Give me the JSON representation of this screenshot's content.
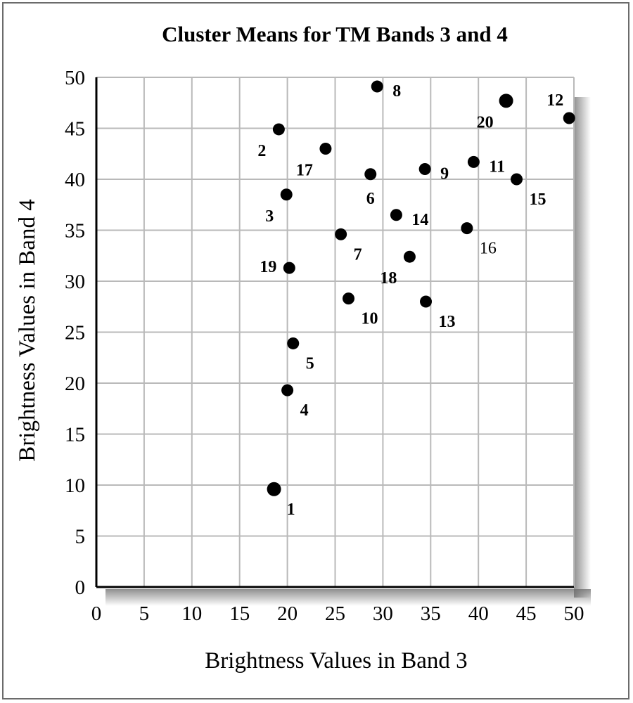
{
  "chart_data": {
    "type": "scatter",
    "title": "Cluster Means for TM Bands 3 and 4",
    "xlabel": "Brightness Values in Band 3",
    "ylabel": "Brightness Values in Band 4",
    "xlim": [
      0,
      50
    ],
    "ylim": [
      0,
      50
    ],
    "xticks": [
      0,
      5,
      10,
      15,
      20,
      25,
      30,
      35,
      40,
      45,
      50
    ],
    "yticks": [
      0,
      5,
      10,
      15,
      20,
      25,
      30,
      35,
      40,
      45,
      50
    ],
    "grid": true,
    "points": [
      {
        "label": "1",
        "x": 18.6,
        "y": 9.6,
        "label_pos": "bottom-right"
      },
      {
        "label": "2",
        "x": 19.1,
        "y": 44.9,
        "label_pos": "bottom-left"
      },
      {
        "label": "3",
        "x": 19.9,
        "y": 38.5,
        "label_pos": "bottom-left"
      },
      {
        "label": "4",
        "x": 20.0,
        "y": 19.3,
        "label_pos": "bottom-right"
      },
      {
        "label": "5",
        "x": 20.6,
        "y": 23.9,
        "label_pos": "bottom-right"
      },
      {
        "label": "6",
        "x": 28.7,
        "y": 40.5,
        "label_pos": "below"
      },
      {
        "label": "7",
        "x": 25.6,
        "y": 34.6,
        "label_pos": "bottom-right"
      },
      {
        "label": "8",
        "x": 29.4,
        "y": 49.1,
        "label_pos": "right"
      },
      {
        "label": "9",
        "x": 34.4,
        "y": 41.0,
        "label_pos": "right"
      },
      {
        "label": "10",
        "x": 26.4,
        "y": 28.3,
        "label_pos": "bottom-right"
      },
      {
        "label": "11",
        "x": 39.5,
        "y": 41.7,
        "label_pos": "right"
      },
      {
        "label": "12",
        "x": 49.5,
        "y": 46.0,
        "label_pos": "top-left"
      },
      {
        "label": "13",
        "x": 34.5,
        "y": 28.0,
        "label_pos": "bottom-right"
      },
      {
        "label": "14",
        "x": 31.4,
        "y": 36.5,
        "label_pos": "right"
      },
      {
        "label": "15",
        "x": 44.0,
        "y": 40.0,
        "label_pos": "bottom-right"
      },
      {
        "label": "16",
        "x": 38.8,
        "y": 35.2,
        "label_pos": "bottom-right"
      },
      {
        "label": "17",
        "x": 24.0,
        "y": 43.0,
        "label_pos": "bottom-left"
      },
      {
        "label": "18",
        "x": 32.8,
        "y": 32.4,
        "label_pos": "bottom-left"
      },
      {
        "label": "19",
        "x": 20.2,
        "y": 31.3,
        "label_pos": "left"
      },
      {
        "label": "20",
        "x": 42.9,
        "y": 47.7,
        "label_pos": "bottom-left"
      }
    ]
  }
}
